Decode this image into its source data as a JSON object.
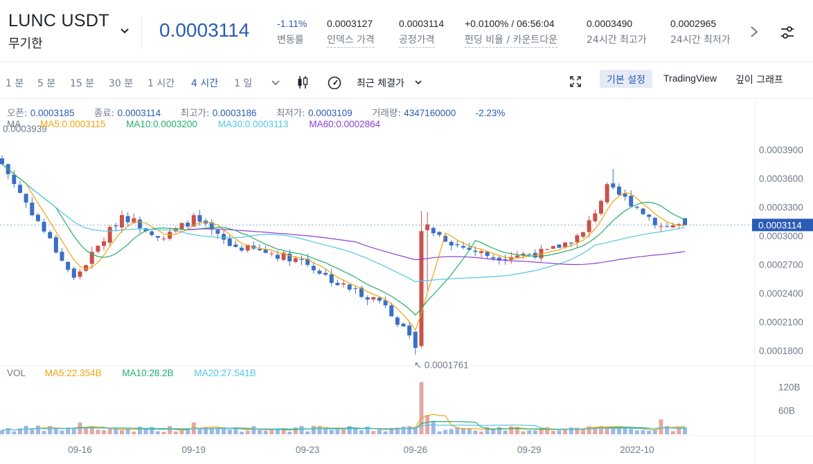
{
  "header": {
    "symbol": "LUNC USDT",
    "contract_type": "무기한",
    "last_price": "0.0003114",
    "stats": [
      {
        "value": "-1.11%",
        "label": "변동률"
      },
      {
        "value": "0.0003127",
        "label": "인덱스 가격"
      },
      {
        "value": "0.0003114",
        "label": "공정가격"
      },
      {
        "value": "+0.0100% / 06:56:04",
        "label": "펀딩 비율 / 카운트다운"
      },
      {
        "value": "0.0003490",
        "label": "24시간 최고가"
      },
      {
        "value": "0.0002965",
        "label": "24시간 최저가"
      }
    ],
    "icons": {
      "symbol_dropdown": "chevron-down-icon",
      "next": "chevron-right-icon",
      "settings": "sliders-icon"
    }
  },
  "toolbar": {
    "timeframes": [
      "1 분",
      "5 분",
      "15 분",
      "30 분",
      "1 시간",
      "4 시간",
      "1 일"
    ],
    "active_timeframe": "4 시간",
    "price_type": "최근 체결가",
    "views": {
      "basic": "기본 설정",
      "tradingview": "TradingView",
      "depth": "깊이 그래프"
    },
    "active_view": "기본 설정",
    "icons": {
      "more": "chevron-down-icon",
      "candle": "candlestick-icon",
      "indicator": "gauge-icon",
      "fullscreen": "fullscreen-icon"
    }
  },
  "legend": {
    "open_label": "오픈:",
    "open": "0.0003185",
    "close_label": "종료:",
    "close": "0.0003114",
    "high_label": "최고가:",
    "high": "0.0003186",
    "low_label": "최저가:",
    "low": "0.0003109",
    "volume_label": "거래량:",
    "volume": "4347160000",
    "change": "-2.23%",
    "ma_label": "MA",
    "ma5": "MA5:0.0003115",
    "ma10": "MA10:0.0003200",
    "ma30": "MA30:0.0003113",
    "ma60": "MA60:0.0002864",
    "vol_label": "VOL",
    "vol_ma5": "MA5:22.354B",
    "vol_ma10": "MA10:28.2B",
    "vol_ma20": "MA20:27.541B"
  },
  "colors": {
    "up": "#c9524a",
    "down": "#3a6fc4",
    "ma5": "#f0a30a",
    "ma10": "#1fae6b",
    "ma30": "#52c5e6",
    "ma60": "#8a3fd1",
    "accent": "#2a5bb5"
  },
  "chart_data": {
    "type": "candlestick",
    "price_axis_ticks": [
      "0.0003900",
      "0.0003600",
      "0.0003300",
      "0.0003000",
      "0.0002700",
      "0.0002400",
      "0.0002100",
      "0.0001800"
    ],
    "price_ticks_values": [
      0.00039,
      0.00036,
      0.00033,
      0.0003,
      0.00027,
      0.00024,
      0.00021,
      0.00018
    ],
    "volume_axis_ticks": [
      "120B",
      "60B"
    ],
    "volume_ticks_values": [
      120,
      60
    ],
    "x_labels": [
      "09-16",
      "09-19",
      "09-23",
      "09-26",
      "09-29",
      "2022-10"
    ],
    "price_range": [
      0.000165,
      0.000407
    ],
    "volume_range": [
      0,
      140
    ],
    "last_price_label": "0.0003114",
    "last_price": 0.0003114,
    "max_annotation": "0.0003939",
    "min_annotation": "0.0001761",
    "min_annotation_price": 0.0001761,
    "candle_count": 115,
    "key_points": [
      {
        "candle": 0,
        "price": 0.000375
      },
      {
        "candle": 12,
        "price": 0.000255
      },
      {
        "candle": 20,
        "price": 0.000322
      },
      {
        "candle": 27,
        "price": 0.000298
      },
      {
        "candle": 32,
        "price": 0.000318
      },
      {
        "candle": 38,
        "price": 0.00029
      },
      {
        "candle": 44,
        "price": 0.000283
      },
      {
        "candle": 50,
        "price": 0.000275
      },
      {
        "candle": 56,
        "price": 0.00025
      },
      {
        "candle": 64,
        "price": 0.00023
      },
      {
        "candle": 69,
        "price": 0.000182
      },
      {
        "candle": 71,
        "price": 0.000308
      },
      {
        "candle": 76,
        "price": 0.00029
      },
      {
        "candle": 82,
        "price": 0.000278
      },
      {
        "candle": 91,
        "price": 0.000283
      },
      {
        "candle": 97,
        "price": 0.000302
      },
      {
        "candle": 101,
        "price": 0.00035
      },
      {
        "candle": 105,
        "price": 0.000335
      },
      {
        "candle": 110,
        "price": 0.00031
      },
      {
        "candle": 114,
        "price": 0.0003114
      }
    ],
    "volume_spikes": [
      {
        "candle": 70,
        "volume": 132
      },
      {
        "candle": 71,
        "volume": 49
      },
      {
        "candle": 72,
        "volume": 34
      },
      {
        "candle": 13,
        "volume": 30
      },
      {
        "candle": 32,
        "volume": 30
      },
      {
        "candle": 110,
        "volume": 38
      }
    ]
  }
}
